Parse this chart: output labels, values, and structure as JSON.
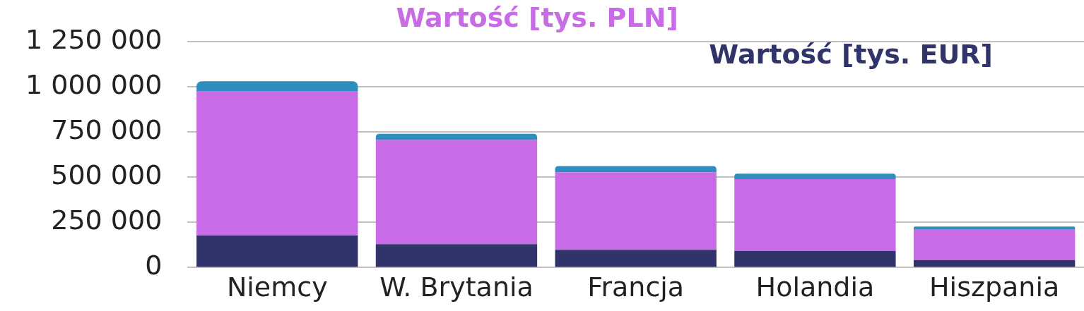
{
  "chart_data": {
    "type": "bar",
    "stacked": true,
    "categories": [
      "Niemcy",
      "W. Brytania",
      "Francja",
      "Holandia",
      "Hiszpania"
    ],
    "series": [
      {
        "name": "Wartość [tys. EUR]",
        "color": "#31346b",
        "values": [
          178000,
          129000,
          98000,
          91000,
          42000
        ]
      },
      {
        "name": "Wartość [tys. PLN]",
        "color": "#c96ae6",
        "values": [
          795000,
          576000,
          429000,
          398000,
          170000
        ]
      },
      {
        "color": "#2e8fbf",
        "values": [
          57000,
          34000,
          34000,
          30000,
          15000
        ]
      }
    ],
    "ylim": [
      0,
      1250000
    ],
    "yticks": [
      {
        "value": 0,
        "label": "0"
      },
      {
        "value": 250000,
        "label": "250 000"
      },
      {
        "value": 500000,
        "label": "500 000"
      },
      {
        "value": 750000,
        "label": "750 000"
      },
      {
        "value": 1000000,
        "label": "1 000 000"
      },
      {
        "value": 1250000,
        "label": "1 250 000"
      }
    ],
    "grid": "y",
    "legend": "top"
  }
}
